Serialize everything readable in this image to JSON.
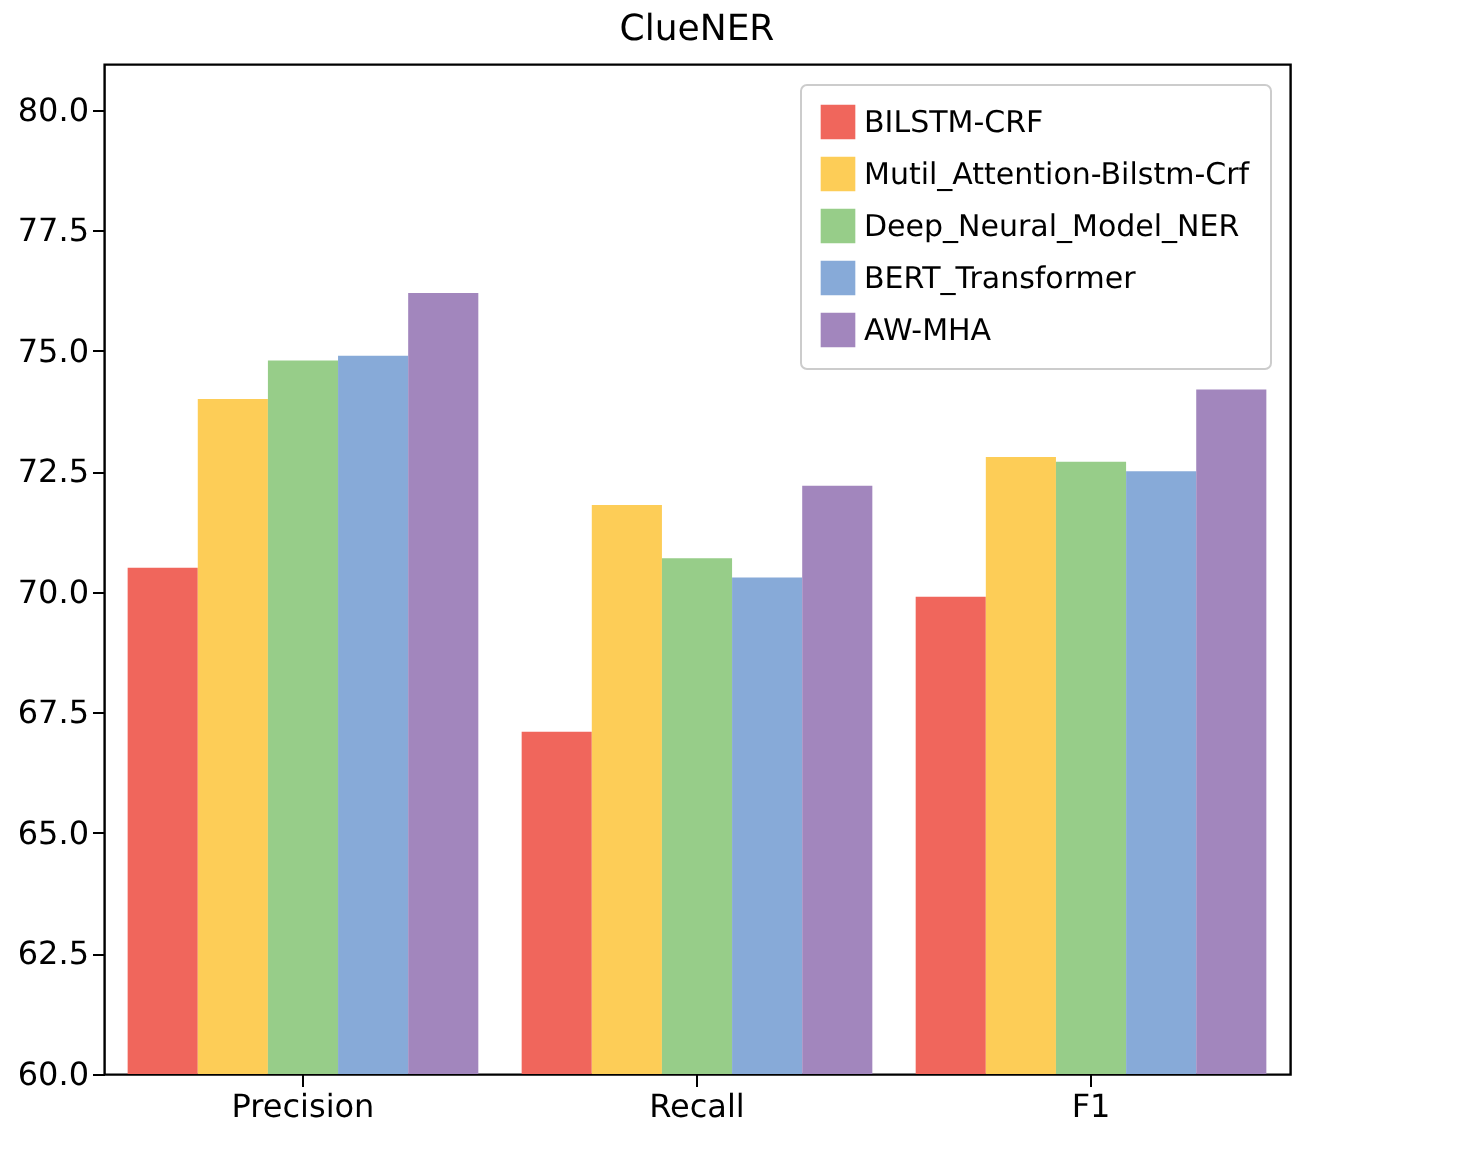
{
  "chart_data": {
    "type": "bar",
    "title": "ClueNER",
    "categories": [
      "Precision",
      "Recall",
      "F1"
    ],
    "series": [
      {
        "name": "BILSTM-CRF",
        "color": "#f0665c",
        "values": [
          70.5,
          67.1,
          69.9
        ]
      },
      {
        "name": "Mutil_Attention-Bilstm-Crf",
        "color": "#fdcd57",
        "values": [
          74.0,
          71.8,
          72.8
        ]
      },
      {
        "name": "Deep_Neural_Model_NER",
        "color": "#97cd89",
        "values": [
          74.8,
          70.7,
          72.7
        ]
      },
      {
        "name": "BERT_Transformer",
        "color": "#87aad8",
        "values": [
          74.9,
          70.3,
          72.5
        ]
      },
      {
        "name": "AW-MHA",
        "color": "#a286bd",
        "values": [
          76.2,
          72.2,
          74.2
        ]
      }
    ],
    "ylim": [
      60,
      80.95
    ],
    "yticks": [
      {
        "value": 60,
        "label": "60.0"
      },
      {
        "value": 62.5,
        "label": "62.5"
      },
      {
        "value": 65,
        "label": "65.0"
      },
      {
        "value": 67.5,
        "label": "67.5"
      },
      {
        "value": 70,
        "label": "70.0"
      },
      {
        "value": 72.5,
        "label": "72.5"
      },
      {
        "value": 75,
        "label": "75.0"
      },
      {
        "value": 77.5,
        "label": "77.5"
      },
      {
        "value": 80,
        "label": "80.0"
      }
    ],
    "legend": "top right",
    "grid": false
  }
}
